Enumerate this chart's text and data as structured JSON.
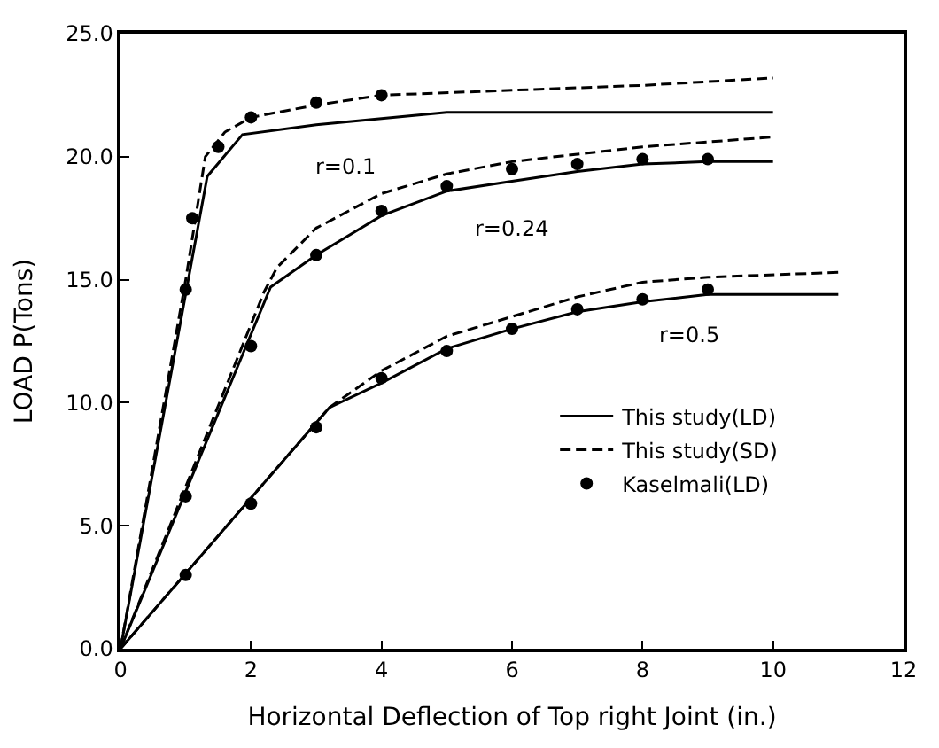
{
  "chart_data": {
    "type": "line",
    "xlabel": "Horizontal Deflection of Top right Joint (in.)",
    "ylabel": "LOAD P(Tons)",
    "xlim": [
      0,
      12
    ],
    "xticks": [
      0,
      2,
      4,
      6,
      8,
      10,
      12
    ],
    "ylim": [
      0,
      25
    ],
    "yticks": [
      {
        "value": 0,
        "label": "0.0"
      },
      {
        "value": 5,
        "label": "5.0"
      },
      {
        "value": 10,
        "label": "10.0"
      },
      {
        "value": 15,
        "label": "15.0"
      },
      {
        "value": 20,
        "label": "20.0"
      },
      {
        "value": 25,
        "label": "25.0"
      }
    ],
    "grid": false,
    "legend": "right",
    "series": [
      {
        "name": "This study(LD)",
        "line_style": "solid",
        "marker": "none",
        "color": "#000000",
        "x": [
          0,
          1.33,
          1.87,
          3,
          5,
          10
        ],
        "values": [
          0,
          19.2,
          20.9,
          21.3,
          21.8,
          21.8
        ]
      },
      {
        "name": "This study(SD)",
        "line_style": "dashed",
        "marker": "none",
        "color": "#000000",
        "x": [
          0,
          1.0,
          1.3,
          1.6,
          2,
          3,
          4,
          6,
          8,
          10
        ],
        "values": [
          0,
          15,
          20,
          21,
          21.6,
          22.1,
          22.5,
          22.7,
          22.9,
          23.2
        ]
      },
      {
        "name": "Kaselmali(LD)",
        "type": "scatter",
        "marker": "circle",
        "color": "#000000",
        "x": [
          1,
          1.1,
          1.5,
          2,
          3,
          4
        ],
        "values": [
          14.6,
          17.5,
          20.4,
          21.6,
          22.2,
          22.5
        ]
      },
      {
        "line_style": "solid",
        "marker": "none",
        "color": "#000000",
        "x": [
          0,
          2.3,
          3,
          4,
          5,
          6,
          7,
          8,
          9,
          10
        ],
        "values": [
          0,
          14.7,
          16.0,
          17.6,
          18.6,
          19.0,
          19.4,
          19.7,
          19.8,
          19.8
        ]
      },
      {
        "line_style": "dashed",
        "marker": "none",
        "color": "#000000",
        "x": [
          0,
          2.2,
          2.4,
          3,
          4,
          5,
          6,
          8,
          10
        ],
        "values": [
          0,
          14.5,
          15.5,
          17.1,
          18.5,
          19.3,
          19.8,
          20.4,
          20.8
        ]
      },
      {
        "type": "scatter",
        "marker": "circle",
        "color": "#000000",
        "x": [
          1,
          2,
          3,
          4,
          5,
          6,
          7,
          8,
          9
        ],
        "values": [
          6.2,
          12.3,
          16.0,
          17.8,
          18.8,
          19.5,
          19.7,
          19.9,
          19.9
        ]
      },
      {
        "line_style": "solid",
        "marker": "none",
        "color": "#000000",
        "x": [
          0,
          3.2,
          4,
          5,
          6,
          7,
          8,
          9,
          11
        ],
        "values": [
          0,
          9.8,
          10.8,
          12.2,
          13.0,
          13.7,
          14.1,
          14.4,
          14.4
        ]
      },
      {
        "line_style": "dashed",
        "marker": "none",
        "color": "#000000",
        "x": [
          0,
          3.2,
          4,
          5,
          6,
          7,
          8,
          9,
          11
        ],
        "values": [
          0,
          9.8,
          11.3,
          12.7,
          13.5,
          14.3,
          14.9,
          15.1,
          15.3
        ]
      },
      {
        "type": "scatter",
        "marker": "circle",
        "color": "#000000",
        "x": [
          1,
          2,
          3,
          4,
          5,
          6,
          7,
          8,
          9
        ],
        "values": [
          3.0,
          5.9,
          9.0,
          11.0,
          12.1,
          13.0,
          13.8,
          14.2,
          14.6
        ]
      }
    ],
    "annotations": [
      "r=0.1",
      "r=0.24",
      "r=0.5"
    ]
  }
}
